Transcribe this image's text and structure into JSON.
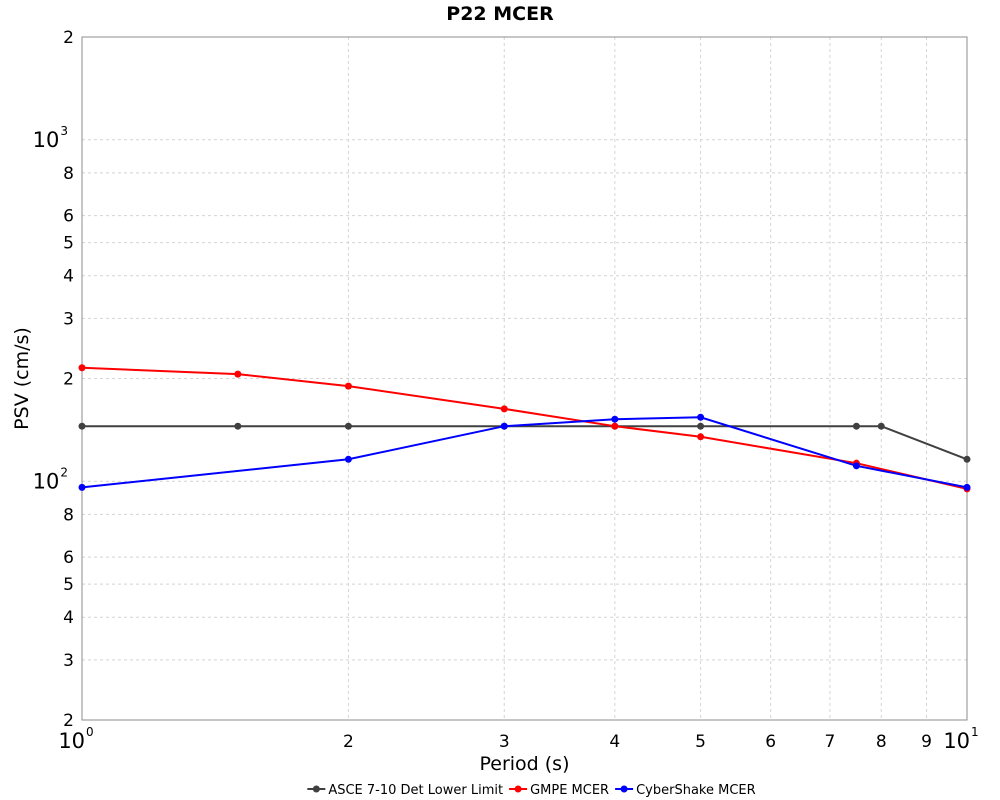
{
  "chart_data": {
    "type": "line",
    "title": "P22 MCER",
    "xlabel": "Period (s)",
    "ylabel": "PSV (cm/s)",
    "xscale": "log",
    "yscale": "log",
    "xlim": [
      1,
      10
    ],
    "ylim": [
      20,
      2000
    ],
    "grid": true,
    "legend_position": "bottom",
    "x_major_ticks": [
      {
        "value": 1,
        "base": "10",
        "exp": "0"
      },
      {
        "value": 10,
        "base": "10",
        "exp": "1"
      }
    ],
    "x_minor_ticks": [
      {
        "value": 2,
        "label": "2"
      },
      {
        "value": 3,
        "label": "3"
      },
      {
        "value": 4,
        "label": "4"
      },
      {
        "value": 5,
        "label": "5"
      },
      {
        "value": 6,
        "label": "6"
      },
      {
        "value": 7,
        "label": "7"
      },
      {
        "value": 8,
        "label": "8"
      },
      {
        "value": 9,
        "label": "9"
      }
    ],
    "y_major_ticks": [
      {
        "value": 100,
        "base": "10",
        "exp": "2"
      },
      {
        "value": 1000,
        "base": "10",
        "exp": "3"
      }
    ],
    "y_minor_ticks": [
      {
        "value": 20,
        "label": "2"
      },
      {
        "value": 30,
        "label": "3"
      },
      {
        "value": 40,
        "label": "4"
      },
      {
        "value": 50,
        "label": "5"
      },
      {
        "value": 60,
        "label": "6"
      },
      {
        "value": 80,
        "label": "8"
      },
      {
        "value": 200,
        "label": "2"
      },
      {
        "value": 300,
        "label": "3"
      },
      {
        "value": 400,
        "label": "4"
      },
      {
        "value": 500,
        "label": "5"
      },
      {
        "value": 600,
        "label": "6"
      },
      {
        "value": 800,
        "label": "8"
      },
      {
        "value": 2000,
        "label": "2"
      }
    ],
    "series": [
      {
        "name": "ASCE 7-10 Det Lower Limit",
        "color": "#404040",
        "x": [
          1,
          1.5,
          2,
          3,
          4,
          5,
          7.5,
          8,
          10
        ],
        "y": [
          145,
          145,
          145,
          145,
          145,
          145,
          145,
          145,
          116
        ]
      },
      {
        "name": "GMPE MCER",
        "color": "#ff0000",
        "x": [
          1,
          1.5,
          2,
          3,
          4,
          5,
          7.5,
          10
        ],
        "y": [
          215,
          206,
          190,
          163,
          145,
          135,
          113,
          95
        ]
      },
      {
        "name": "CyberShake MCER",
        "color": "#0000ff",
        "x": [
          1,
          2,
          3,
          4,
          5,
          7.5,
          10
        ],
        "y": [
          96,
          116,
          145,
          152,
          154,
          111,
          96
        ]
      }
    ]
  }
}
